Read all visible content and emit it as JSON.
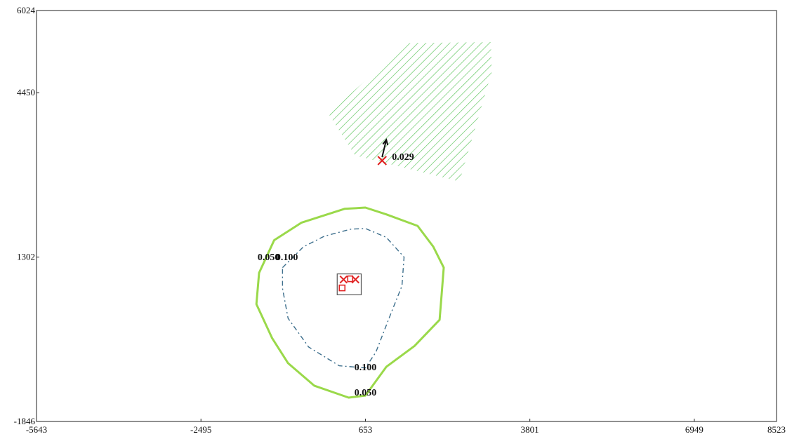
{
  "chart_data": {
    "type": "contour-map",
    "title": "",
    "xlabel": "",
    "ylabel": "",
    "x_ticks": [
      "-5643",
      "-2495",
      "653",
      "3801",
      "6949",
      "8523"
    ],
    "y_ticks": [
      "6024",
      "4450",
      "1302",
      "-1846"
    ],
    "xlim": [
      -5643,
      8523
    ],
    "ylim": [
      -1846,
      6024
    ],
    "contours": [
      {
        "level": "0.050",
        "color": "#9ad94a",
        "style": "solid",
        "labels": [
          {
            "text": "0.050",
            "x": -1200,
            "y": 1310
          },
          {
            "text": "0.050",
            "x": 653,
            "y": -1280
          }
        ],
        "points": [
          [
            -1243,
            1302
          ],
          [
            -1093,
            1625
          ],
          [
            -573,
            1960
          ],
          [
            253,
            2226
          ],
          [
            653,
            2250
          ],
          [
            1053,
            2120
          ],
          [
            1653,
            1900
          ],
          [
            1953,
            1500
          ],
          [
            2153,
            1100
          ],
          [
            2113,
            600
          ],
          [
            2073,
            100
          ],
          [
            1593,
            -400
          ],
          [
            1053,
            -800
          ],
          [
            653,
            -1350
          ],
          [
            333,
            -1390
          ],
          [
            -327,
            -1160
          ],
          [
            -827,
            -730
          ],
          [
            -1133,
            -250
          ],
          [
            -1433,
            400
          ],
          [
            -1383,
            1000
          ],
          [
            -1243,
            1302
          ]
        ]
      },
      {
        "level": "0.100",
        "color": "#3c6e8c",
        "style": "dashdot",
        "labels": [
          {
            "text": "0.100",
            "x": -850,
            "y": 1310
          },
          {
            "text": "0.100",
            "x": 653,
            "y": -800
          }
        ],
        "points": [
          [
            -933,
            1100
          ],
          [
            -533,
            1500
          ],
          [
            -133,
            1702
          ],
          [
            373,
            1836
          ],
          [
            653,
            1850
          ],
          [
            1053,
            1680
          ],
          [
            1393,
            1302
          ],
          [
            1353,
            750
          ],
          [
            1153,
            250
          ],
          [
            853,
            -520
          ],
          [
            653,
            -820
          ],
          [
            153,
            -780
          ],
          [
            -433,
            -420
          ],
          [
            -827,
            130
          ],
          [
            -933,
            700
          ],
          [
            -933,
            1100
          ]
        ]
      }
    ],
    "hatched_region": {
      "color": "#5cc45c",
      "points": [
        [
          -53,
          4050
        ],
        [
          1453,
          5400
        ],
        [
          3053,
          5420
        ],
        [
          3073,
          4850
        ],
        [
          2453,
          2750
        ],
        [
          453,
          3250
        ],
        [
          -53,
          4050
        ]
      ]
    },
    "point": {
      "label": "0.029",
      "x": 973,
      "y": 3150,
      "marker": "x",
      "marker_color": "#e02020"
    },
    "arrow": {
      "from": [
        973,
        3150
      ],
      "to": [
        1053,
        3550
      ],
      "color": "#111111"
    },
    "source_box": {
      "x0": 113,
      "y0": 580,
      "x1": 573,
      "y1": 980,
      "color": "#555555",
      "marker_color": "#e02020"
    }
  }
}
